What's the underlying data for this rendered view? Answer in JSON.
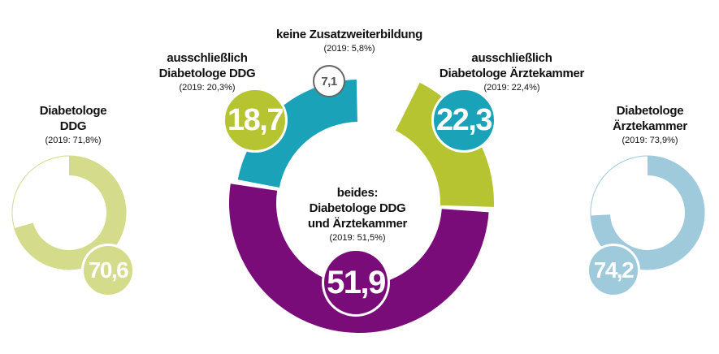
{
  "chart_data": [
    {
      "type": "pie",
      "variant": "donut",
      "slices": [
        {
          "key": "keine",
          "label": "keine Zusatzweiterbildung",
          "note": "(2019: 5,8%)",
          "value": 7.1,
          "display": "7,1",
          "color": "#ffffff",
          "outline": "#666666"
        },
        {
          "key": "ddg_only",
          "label": "ausschließlich Diabetologe DDG",
          "note": "(2019: 20,3%)",
          "value": 18.7,
          "display": "18,7",
          "color": "#b5c430"
        },
        {
          "key": "both",
          "label": "beides: Diabetologe DDG und Ärztekammer",
          "note": "(2019: 51,5%)",
          "value": 51.9,
          "display": "51,9",
          "color": "#7a0c7a"
        },
        {
          "key": "aek_only",
          "label": "ausschließlich Diabetologe Ärztekammer",
          "note": "(2019: 22,4%)",
          "value": 22.3,
          "display": "22,3",
          "color": "#1aa3b8"
        }
      ]
    },
    {
      "type": "pie",
      "variant": "donut",
      "label": "Diabetologe DDG",
      "note": "(2019: 71,8%)",
      "value": 70.6,
      "display": "70,6",
      "color": "#d4db8b",
      "rest_color": "#ffffff"
    },
    {
      "type": "pie",
      "variant": "donut",
      "label": "Diabetologe Ärztekammer",
      "note": "(2019: 73,9%)",
      "value": 74.2,
      "display": "74,2",
      "color": "#9ecadb",
      "rest_color": "#ffffff"
    }
  ],
  "labels": {
    "keine": {
      "title": "keine Zusatzweiterbildung",
      "note": "(2019: 5,8%)"
    },
    "ddg_only": {
      "line1": "ausschließlich",
      "line2": "Diabetologe DDG",
      "note": "(2019: 20,3%)"
    },
    "aek_only": {
      "line1": "ausschließlich",
      "line2": "Diabetologe Ärztekammer",
      "note": "(2019: 22,4%)"
    },
    "both": {
      "line1": "beides:",
      "line2": "Diabetologe DDG",
      "line3": "und Ärztekammer",
      "note": "(2019: 51,5%)"
    },
    "left": {
      "line1": "Diabetologe",
      "line2": "DDG",
      "note": "(2019: 71,8%)"
    },
    "right": {
      "line1": "Diabetologe",
      "line2": "Ärztekammer",
      "note": "(2019: 73,9%)"
    }
  },
  "values": {
    "keine": "7,1",
    "ddg_only": "18,7",
    "aek_only": "22,3",
    "both": "51,9",
    "left": "70,6",
    "right": "74,2"
  },
  "colors": {
    "ddg_only": "#b5c430",
    "both": "#7a0c7a",
    "aek_only": "#1aa3b8",
    "left": "#d4db8b",
    "right": "#9ecadb",
    "keine_outline": "#666666"
  }
}
